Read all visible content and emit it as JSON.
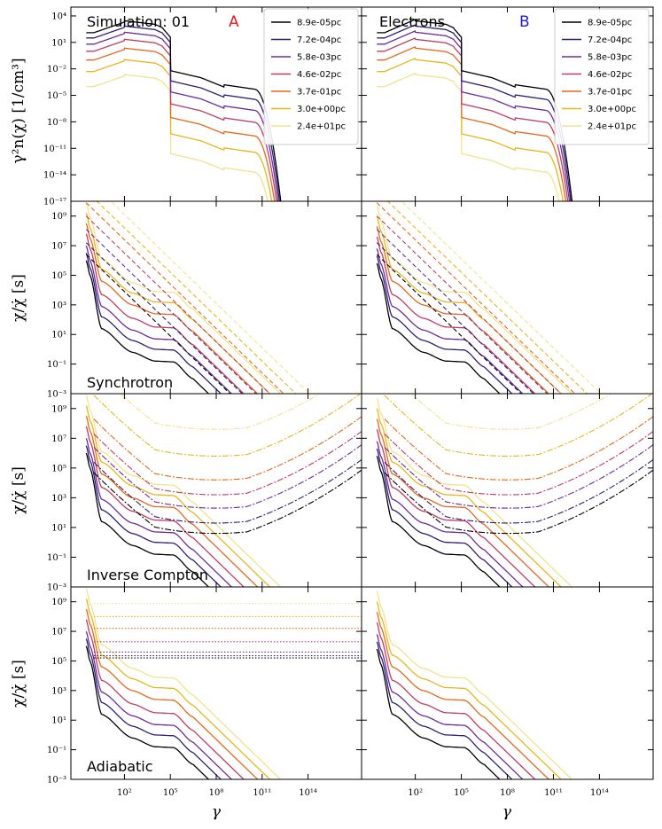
{
  "figure": {
    "ylabels": [
      "γ²n(χ) [1/cm³]",
      "χ/χ̇ [s]",
      "χ/χ̇ [s]",
      "χ/χ̇ [s]"
    ],
    "xlabel": "γ",
    "columns": [
      {
        "title": "Simulation: 01",
        "letter": "A",
        "letter_color": "#e41a1c"
      },
      {
        "title": "Electrons",
        "letter": "B",
        "letter_color": "#1f1fd0"
      }
    ],
    "row_titles": [
      "",
      "Synchrotron",
      "Inverse Compton",
      "Adiabatic"
    ]
  },
  "chart_data": {
    "type": "line",
    "xscale": "log",
    "yscale": "log",
    "xlim_log10": [
      -1.5,
      17.5
    ],
    "x_tick_labels": [
      "10²",
      "10⁵",
      "10⁸",
      "10¹¹",
      "10¹⁴"
    ],
    "x_tick_exponents": [
      2,
      5,
      8,
      11,
      14
    ],
    "legend": {
      "position": "top-right",
      "entries": [
        "8.9e-05pc",
        "7.2e-04pc",
        "5.8e-03pc",
        "4.6e-02pc",
        "3.7e-01pc",
        "3.0e+00pc",
        "2.4e+01pc"
      ]
    },
    "series_colors": [
      "#000004",
      "#2c1f74",
      "#6a2ba0",
      "#c23b60",
      "#e8671c",
      "#e9b619",
      "#f0e48c"
    ],
    "rows": [
      {
        "name": "density",
        "ylim_log10": [
          -17,
          5
        ],
        "y_tick_labels": [
          "10⁻¹⁷",
          "10⁻¹⁴",
          "10⁻¹¹",
          "10⁻⁸",
          "10⁻⁵",
          "10⁻²",
          "10¹",
          "10⁴"
        ],
        "y_tick_exponents": [
          -17,
          -14,
          -11,
          -8,
          -5,
          -2,
          1,
          4
        ]
      },
      {
        "name": "Synchrotron",
        "ylim_log10": [
          -3,
          10
        ],
        "y_tick_labels": [
          "10⁻³",
          "10⁻¹",
          "10¹",
          "10³",
          "10⁵",
          "10⁷",
          "10⁹"
        ],
        "y_tick_exponents": [
          -3,
          -1,
          1,
          3,
          5,
          7,
          9
        ]
      },
      {
        "name": "Inverse Compton",
        "ylim_log10": [
          -3,
          10
        ],
        "y_tick_labels": [
          "10⁻³",
          "10⁻¹",
          "10¹",
          "10³",
          "10⁵",
          "10⁷",
          "10⁹"
        ],
        "y_tick_exponents": [
          -3,
          -1,
          1,
          3,
          5,
          7,
          9
        ]
      },
      {
        "name": "Adiabatic",
        "ylim_log10": [
          -3,
          10
        ],
        "y_tick_labels": [
          "10⁻³",
          "10⁻¹",
          "10¹",
          "10³",
          "10⁵",
          "10⁷",
          "10⁹"
        ],
        "y_tick_exponents": [
          -3,
          -1,
          1,
          3,
          5,
          7,
          9
        ]
      }
    ],
    "series_params": {
      "plateau_log10": [
        -0.8,
        0.0,
        0.7,
        1.5,
        2.4,
        3.2,
        3.9
      ],
      "start_log10": [
        6.0,
        6.5,
        7.0,
        7.8,
        8.5,
        9.2,
        9.9
      ],
      "density_peak_log10": [
        3.6,
        3.0,
        2.3,
        1.5,
        0.5,
        -0.8,
        -2.5
      ],
      "synch_loss_intercept_log10": [
        5.6,
        6.4,
        7.3,
        8.2,
        9.1,
        9.9,
        10.8
      ],
      "adiabatic_level_log10": [
        5.2,
        5.35,
        5.6,
        6.3,
        7.2,
        8.0,
        8.9
      ],
      "ic_min_log10": [
        0.6,
        1.3,
        2.3,
        3.2,
        4.2,
        5.8,
        7.6
      ]
    }
  }
}
